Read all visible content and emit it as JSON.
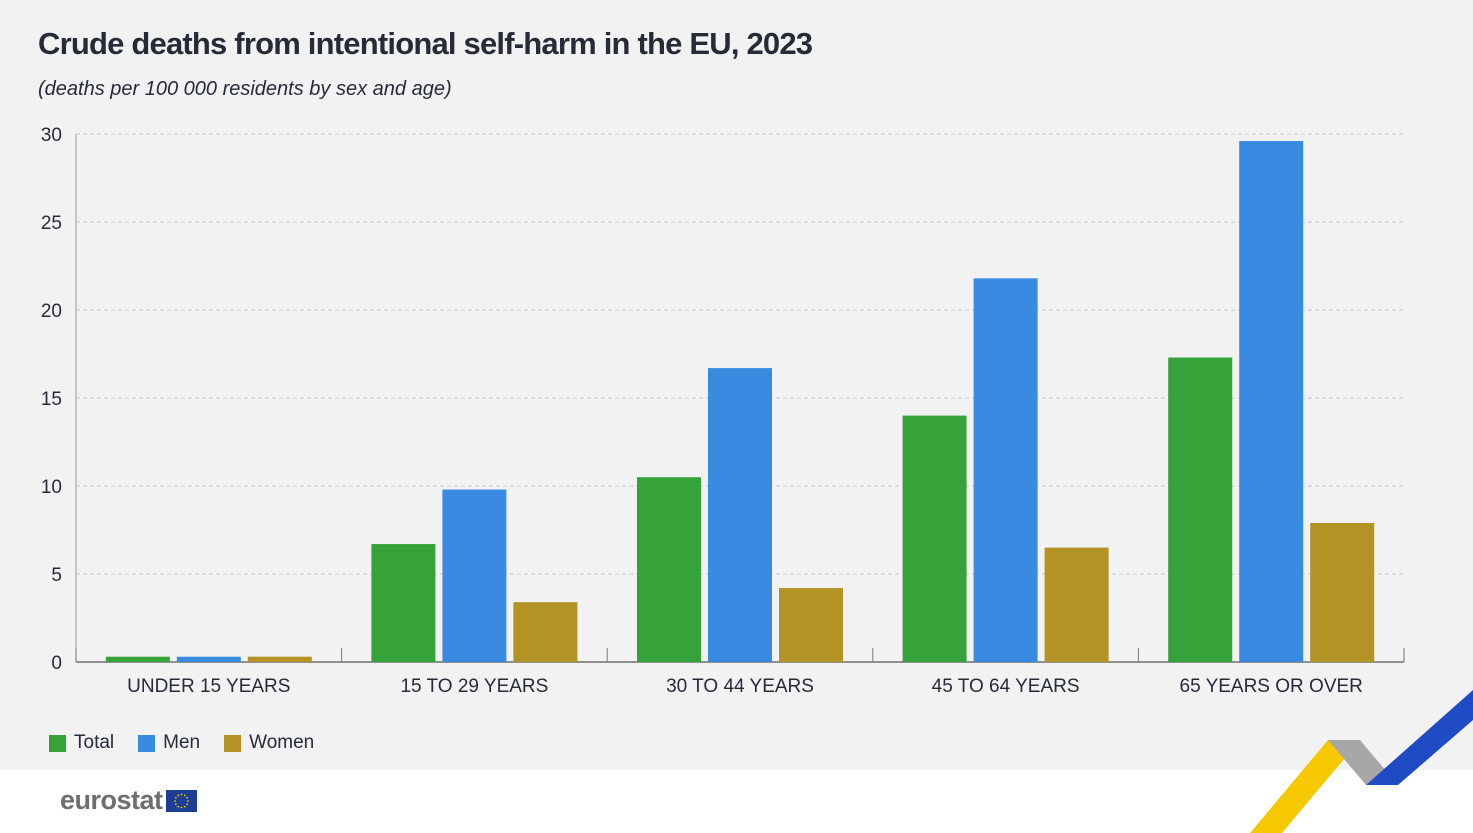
{
  "chart_data": {
    "type": "bar",
    "title": "Crude deaths from intentional self-harm in the EU, 2023",
    "subtitle": "(deaths per 100 000 residents by sex and age)",
    "categories": [
      "UNDER 15 YEARS",
      "15 TO 29 YEARS",
      "30 TO 44 YEARS",
      "45 TO 64 YEARS",
      "65 YEARS OR OVER"
    ],
    "series": [
      {
        "name": "Total",
        "color": "#35a23a",
        "values": [
          0.3,
          6.7,
          10.5,
          14.0,
          17.3
        ]
      },
      {
        "name": "Men",
        "color": "#398be2",
        "values": [
          0.3,
          9.8,
          16.7,
          21.8,
          29.6
        ]
      },
      {
        "name": "Women",
        "color": "#b29323",
        "values": [
          0.3,
          3.4,
          4.2,
          6.5,
          7.9
        ]
      }
    ],
    "ylim": [
      0,
      30
    ],
    "yticks": [
      0,
      5,
      10,
      15,
      20,
      25,
      30
    ],
    "grid": true,
    "legend_position": "bottom-left"
  },
  "branding": {
    "logo_text": "eurostat",
    "logo_icon": "eu-flag-icon"
  },
  "colors": {
    "background": "#f2f2f2",
    "text": "#262b38",
    "decor_yellow": "#f6c800",
    "decor_grey": "#a7a7a7",
    "decor_blue": "#1f4bc4"
  }
}
